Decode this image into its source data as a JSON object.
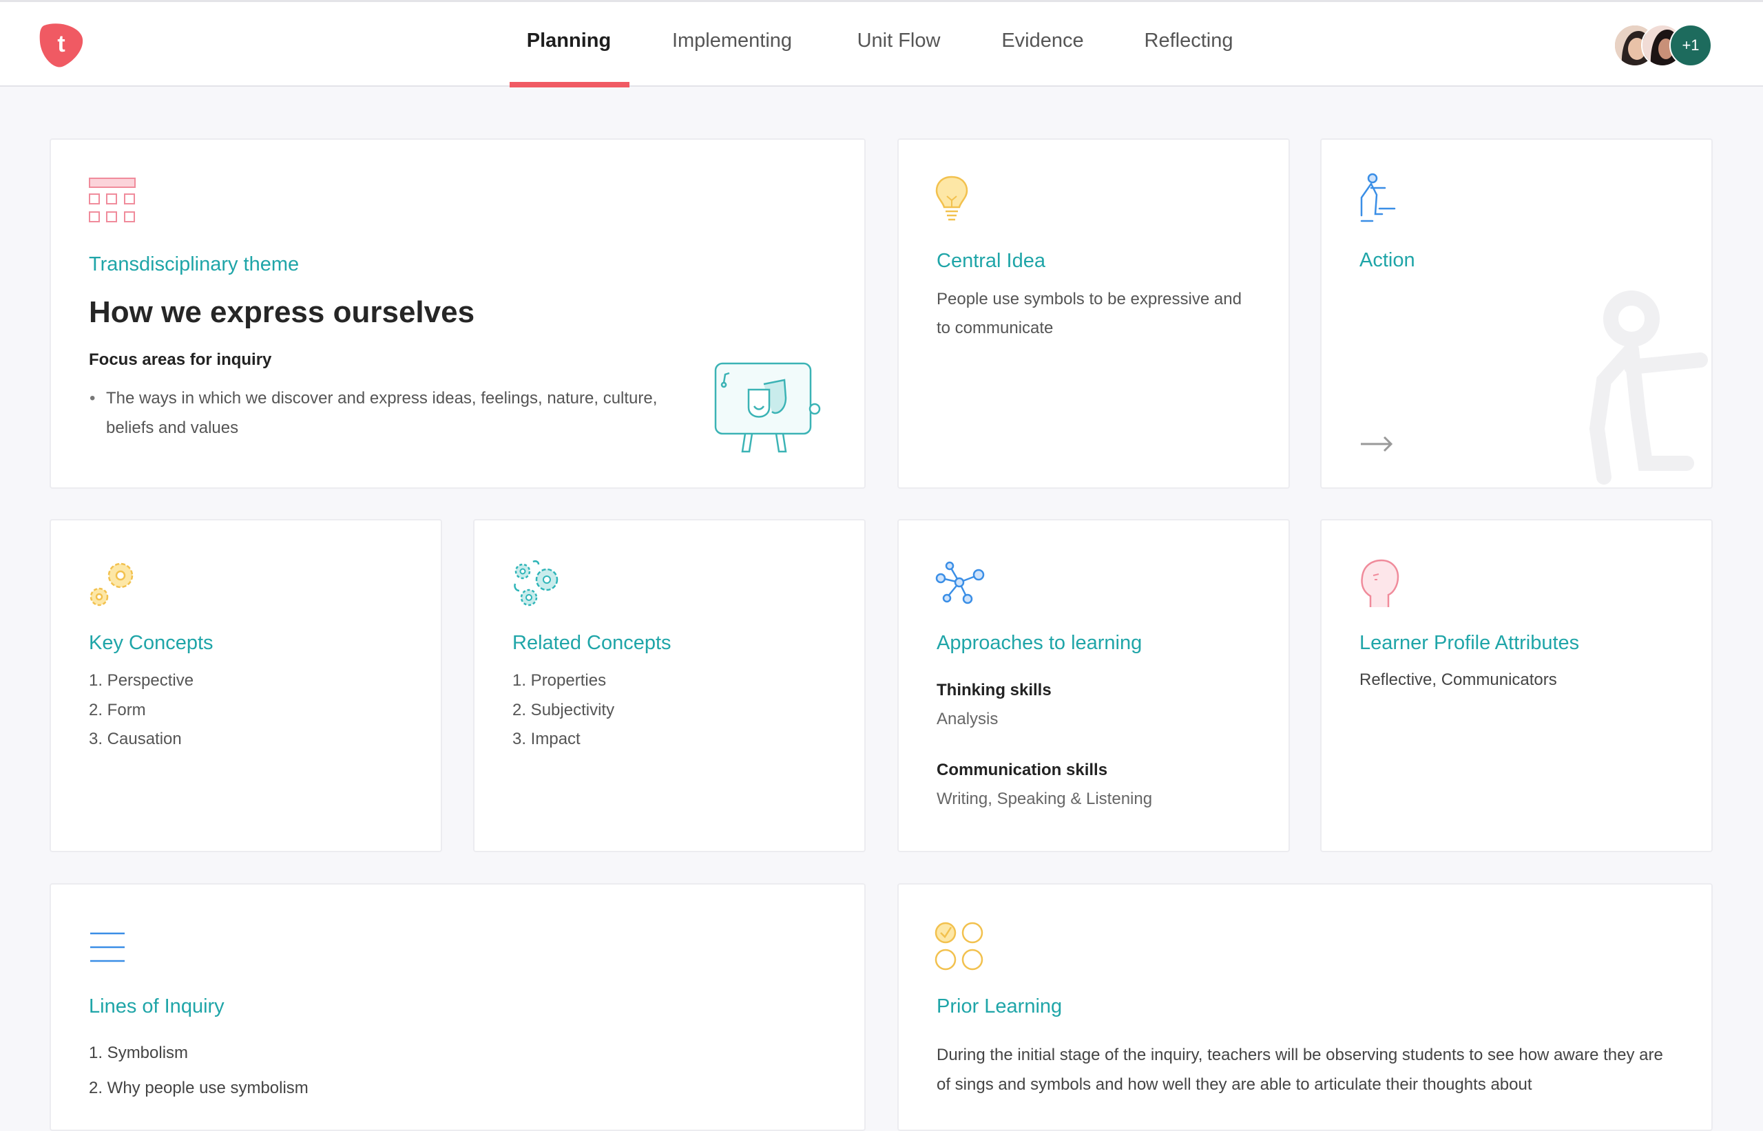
{
  "header": {
    "logo_letter": "t",
    "tabs": [
      {
        "label": "Planning",
        "active": true
      },
      {
        "label": "Implementing"
      },
      {
        "label": "Unit Flow"
      },
      {
        "label": "Evidence"
      },
      {
        "label": "Reflecting"
      }
    ],
    "avatars_more": "+1",
    "accent": "#f05a63"
  },
  "theme": {
    "label": "Transdisciplinary theme",
    "title": "How we express ourselves",
    "focus_label": "Focus areas for inquiry",
    "focus_items": [
      "The ways in which we discover and express ideas, feelings, nature, culture, beliefs and values"
    ]
  },
  "central_idea": {
    "label": "Central Idea",
    "text": "People use symbols to be expressive and to communicate"
  },
  "action": {
    "label": "Action"
  },
  "key_concepts": {
    "label": "Key Concepts",
    "items": [
      "1. Perspective",
      "2. Form",
      "3. Causation"
    ]
  },
  "related_concepts": {
    "label": "Related Concepts",
    "items": [
      "1. Properties",
      "2. Subjectivity",
      "3. Impact"
    ]
  },
  "approaches": {
    "label": "Approaches to learning",
    "groups": [
      {
        "name": "Thinking skills",
        "value": "Analysis"
      },
      {
        "name": "Communication skills",
        "value": "Writing, Speaking & Listening"
      }
    ]
  },
  "learner_profile": {
    "label": "Learner Profile Attributes",
    "text": "Reflective, Communicators"
  },
  "lines_of_inquiry": {
    "label": "Lines of Inquiry",
    "items": [
      "1.  Symbolism",
      "2.  Why people use symbolism"
    ]
  },
  "prior_learning": {
    "label": "Prior Learning",
    "text": "During the initial stage of the inquiry, teachers will be observing students to see how aware they are of sings and symbols and how well they are able to articulate their thoughts about"
  },
  "colors": {
    "teal": "#1fa5a8",
    "yellow": "#f2c14e",
    "blue": "#3a8ee6",
    "pink": "#f08b9b"
  }
}
